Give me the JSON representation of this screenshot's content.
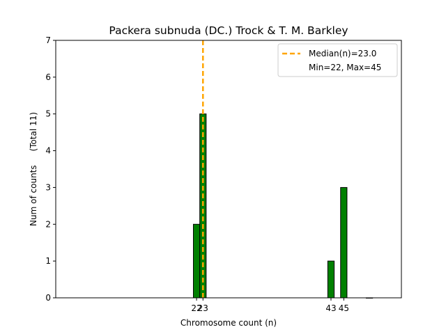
{
  "chart_data": {
    "type": "bar",
    "title": "Packera subnuda (DC.) Trock & T. M. Barkley",
    "xlabel": "Chromosome count (n)",
    "ylabel": "Num of counts",
    "ylabel_total": "(Total 11)",
    "xlim": [
      0,
      54
    ],
    "ylim": [
      0,
      7
    ],
    "yticks": [
      0,
      1,
      2,
      3,
      4,
      5,
      6,
      7
    ],
    "xticks": [
      22,
      23,
      43,
      45
    ],
    "bar_width": 1,
    "bar_color": "#008000",
    "bar_edge_color": "#000000",
    "bars": [
      {
        "x": 22,
        "value": 2
      },
      {
        "x": 23,
        "value": 5
      },
      {
        "x": 43,
        "value": 1
      },
      {
        "x": 45,
        "value": 3
      },
      {
        "x": 49,
        "value": 0
      }
    ],
    "median": {
      "value": 23.0,
      "color": "#FFA500"
    },
    "legend": {
      "position": "top-right",
      "entries": [
        "Median(n)=23.0",
        "Min=22, Max=45"
      ]
    }
  }
}
